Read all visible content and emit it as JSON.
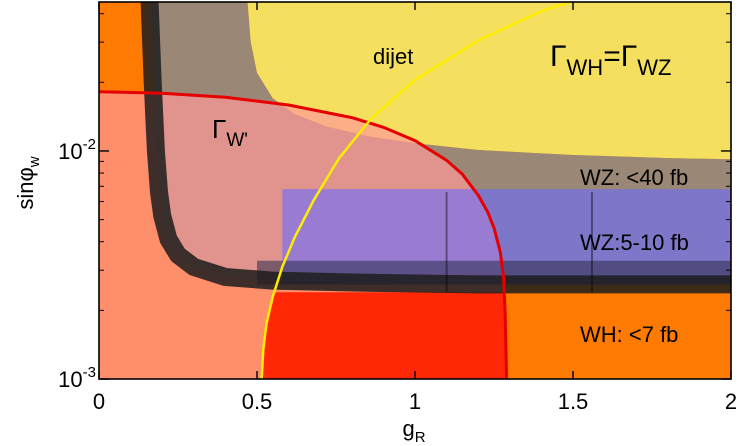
{
  "chart_data": {
    "type": "area",
    "title": "",
    "xlabel": "g",
    "xlabel_sub": "R",
    "ylabel": "sinφ",
    "ylabel_sub": "w",
    "xlim": [
      0,
      2
    ],
    "ylim": [
      0.001,
      0.045
    ],
    "yscale": "log",
    "grid": false,
    "x_ticks": [
      0,
      0.5,
      1,
      1.5,
      2
    ],
    "x_tick_labels": [
      "0",
      "0.5",
      "1",
      "1.5",
      "2"
    ],
    "y_ticks": [
      0.001,
      0.01
    ],
    "y_tick_labels": [
      {
        "base": "10",
        "exp": "-3"
      },
      {
        "base": "10",
        "exp": "-2"
      }
    ],
    "regions": [
      {
        "key": "dijet",
        "label": "dijet",
        "color": "#f2f26e",
        "boundary_x": [
          0.47,
          0.48,
          0.5,
          0.55,
          0.62,
          0.72,
          0.85,
          1.0,
          1.2,
          1.5,
          1.8,
          2.0
        ],
        "boundary_y": [
          0.045,
          0.03,
          0.022,
          0.017,
          0.0145,
          0.0128,
          0.0116,
          0.0108,
          0.0101,
          0.0096,
          0.0093,
          0.0092
        ]
      },
      {
        "key": "grey",
        "color": "#8a8a8a"
      },
      {
        "key": "wprime",
        "color": "#ff9999"
      },
      {
        "key": "wz",
        "color": "#6a6aff"
      },
      {
        "key": "orange",
        "color": "#ff7a00"
      },
      {
        "key": "wh",
        "color": "#ff2200"
      }
    ],
    "curves": [
      {
        "key": "width_wprime",
        "color": "#e60000",
        "x": [
          0,
          0.2,
          0.4,
          0.6,
          0.8,
          0.9,
          1.0,
          1.1,
          1.15,
          1.2,
          1.23,
          1.25,
          1.27,
          1.28,
          1.285,
          1.29
        ],
        "y": [
          0.0182,
          0.0179,
          0.0172,
          0.0159,
          0.014,
          0.0127,
          0.0111,
          0.0091,
          0.0079,
          0.0064,
          0.0054,
          0.0046,
          0.0036,
          0.0028,
          0.002,
          0.001
        ]
      },
      {
        "key": "equal_width",
        "color": "#ffee00",
        "x": [
          0.515,
          0.52,
          0.53,
          0.55,
          0.58,
          0.62,
          0.68,
          0.76,
          0.86,
          1.0,
          1.2,
          1.4,
          1.55
        ],
        "y": [
          0.001,
          0.00135,
          0.00175,
          0.0023,
          0.0031,
          0.0042,
          0.0061,
          0.0093,
          0.0138,
          0.0205,
          0.0305,
          0.041,
          0.048
        ]
      },
      {
        "key": "band_wz_low",
        "color": "#000000",
        "x": [
          0.16,
          0.17,
          0.18,
          0.19,
          0.2,
          0.22,
          0.25,
          0.3,
          0.4,
          0.55,
          0.8,
          1.2,
          1.6,
          2.0
        ],
        "y": [
          0.045,
          0.02,
          0.01,
          0.0066,
          0.0052,
          0.0041,
          0.0035,
          0.0031,
          0.0028,
          0.0027,
          0.00265,
          0.0026,
          0.0026,
          0.0026
        ]
      }
    ],
    "bands": [
      {
        "key": "wz_40",
        "y_top": 0.0068,
        "x_start": 0.58
      },
      {
        "key": "wz_5_10",
        "y_top": 0.0033
      }
    ],
    "annotations": [
      {
        "key": "gamma_eq",
        "parts": [
          {
            "t": "Γ"
          },
          {
            "t": "WH",
            "sub": true
          },
          {
            "t": "=Γ"
          },
          {
            "t": "WZ",
            "sub": true
          }
        ]
      },
      {
        "key": "gamma_w",
        "parts": [
          {
            "t": "Γ"
          },
          {
            "t": "W'",
            "sub": true
          }
        ]
      },
      {
        "key": "dijet_label",
        "parts": [
          {
            "t": "dijet"
          }
        ]
      },
      {
        "key": "wz40_label",
        "parts": [
          {
            "t": "WZ: <40 fb"
          }
        ]
      },
      {
        "key": "wz510_label",
        "parts": [
          {
            "t": "WZ:5-10 fb"
          }
        ]
      },
      {
        "key": "wh7_label",
        "parts": [
          {
            "t": "WH: <7 fb"
          }
        ]
      }
    ]
  }
}
